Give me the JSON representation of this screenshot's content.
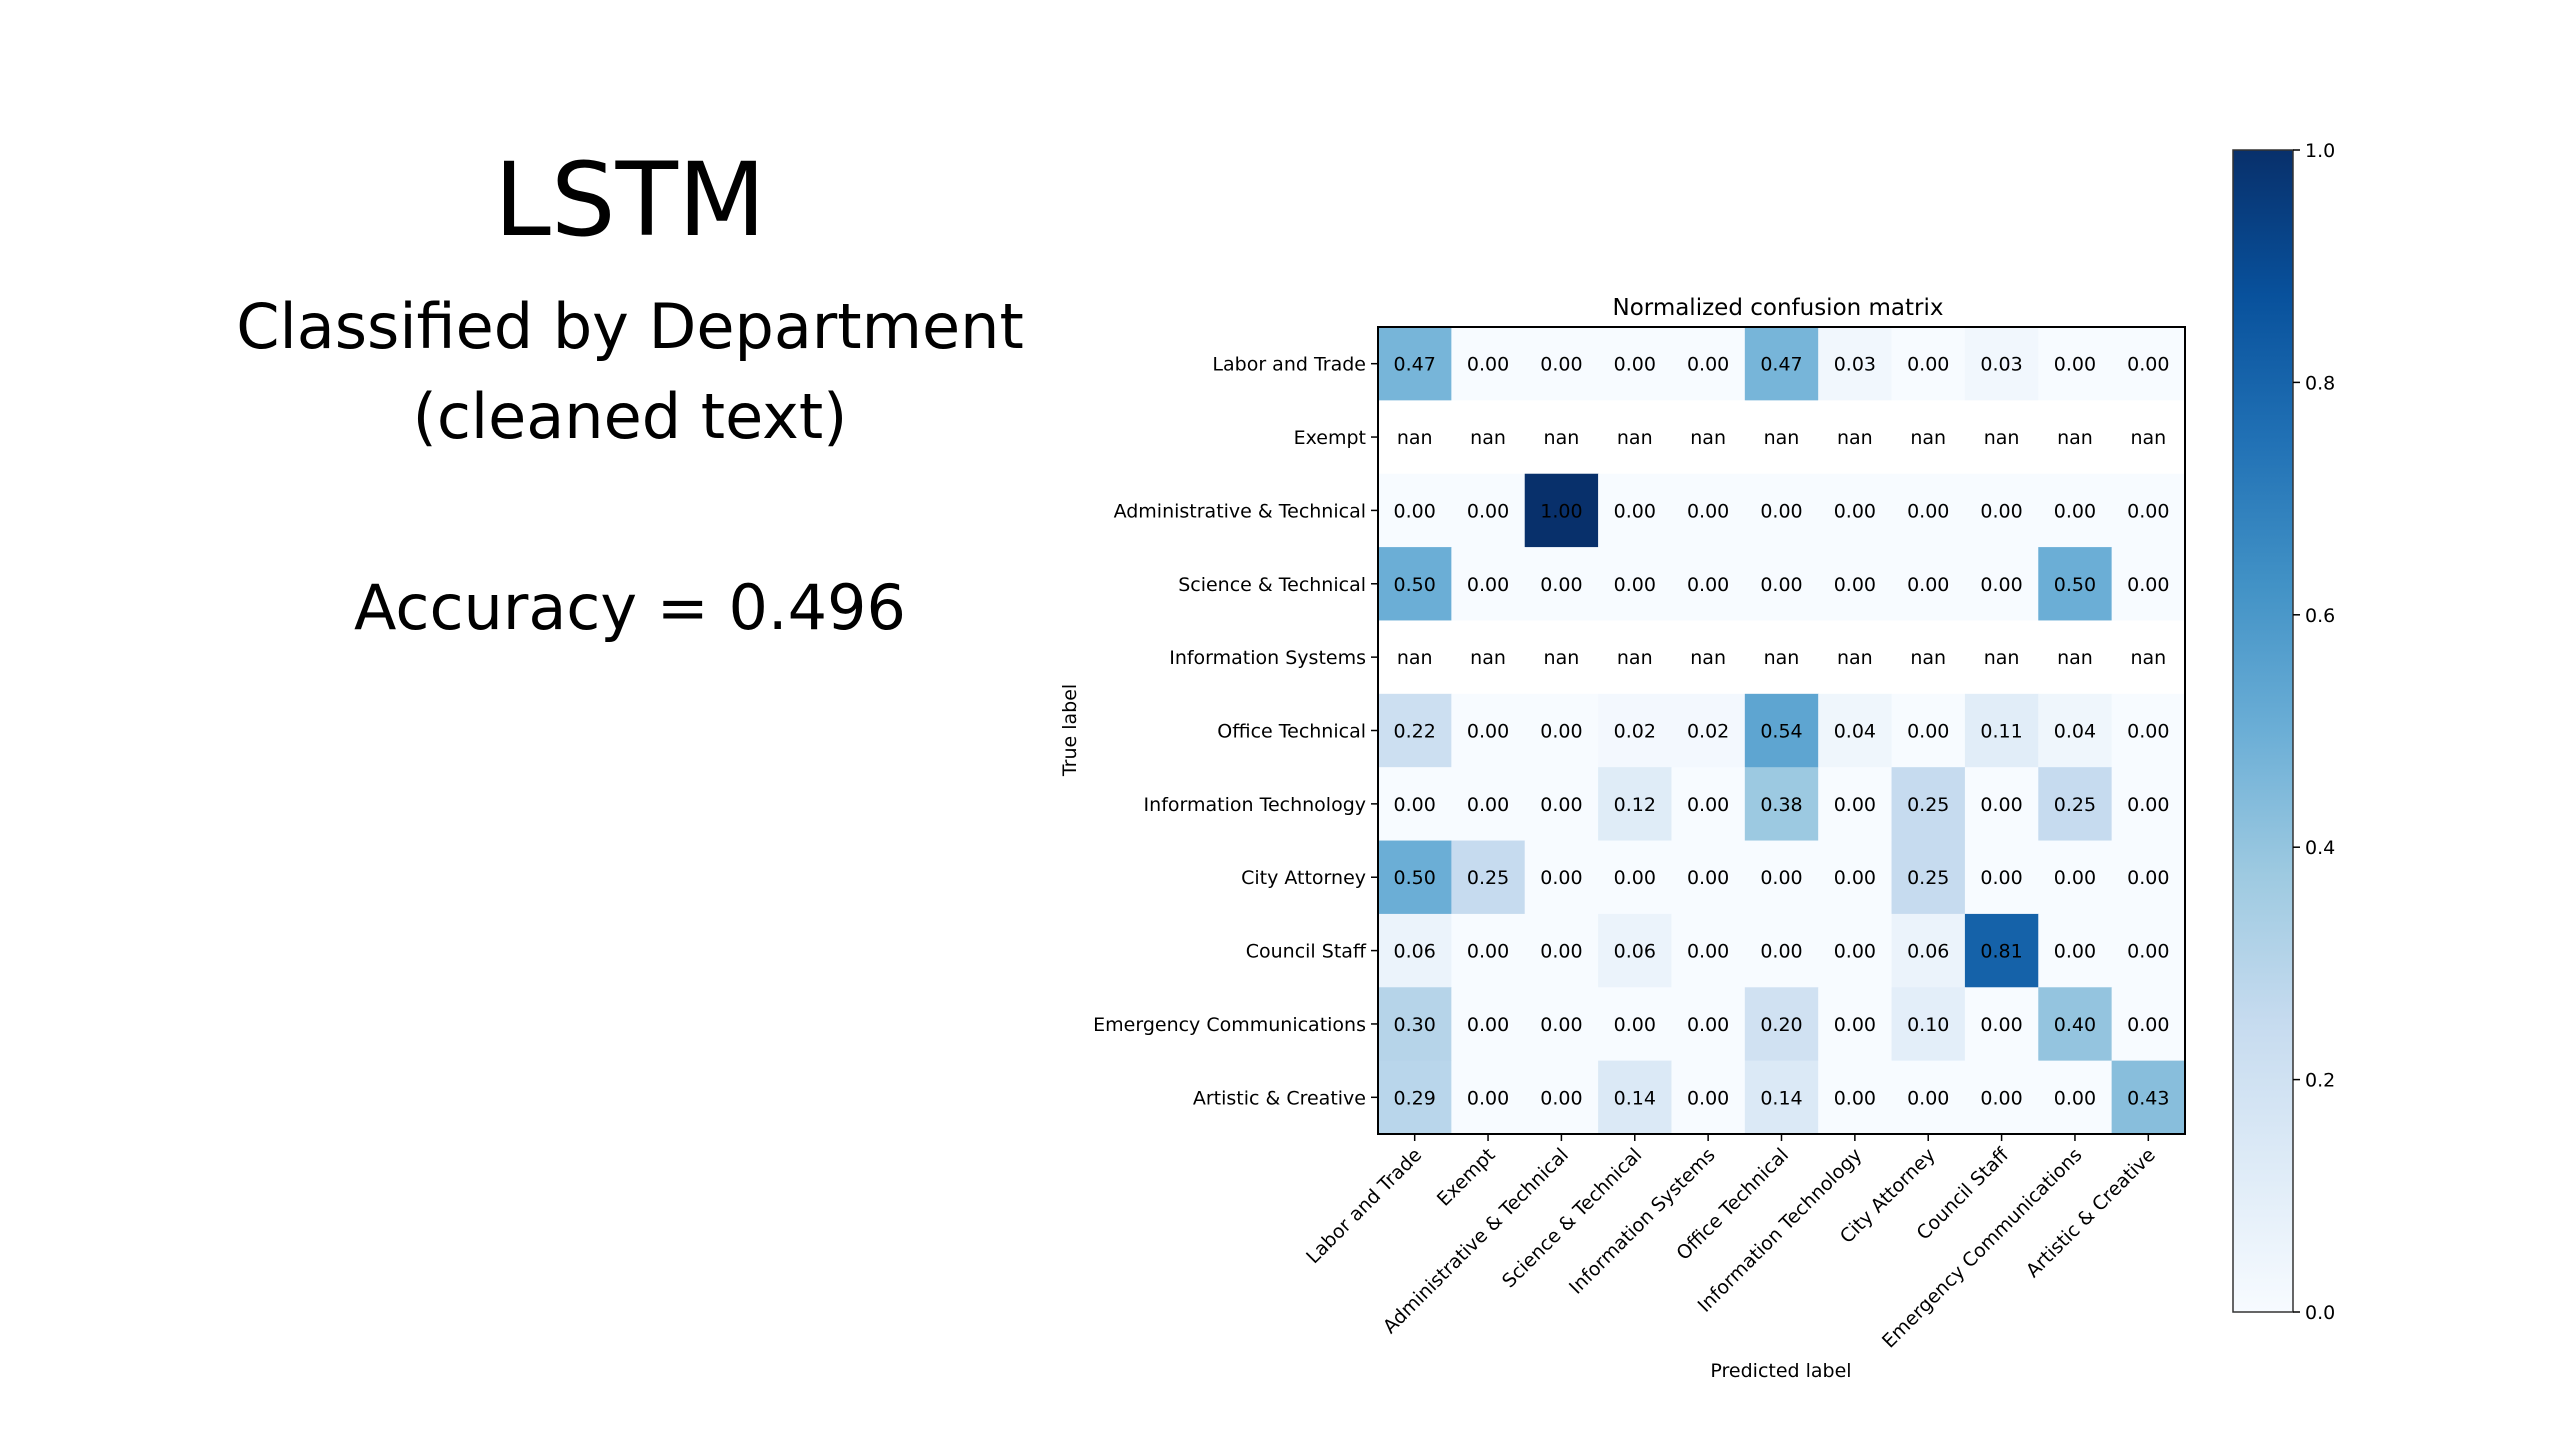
{
  "slide": {
    "title": "LSTM",
    "subtitle_line1": "Classified by Department",
    "subtitle_line2": "(cleaned text)",
    "accuracy": "Accuracy = 0.496"
  },
  "chart_data": {
    "type": "heatmap",
    "title": "Normalized confusion matrix",
    "xlabel": "Predicted label",
    "ylabel": "True label",
    "colormap": "Blues",
    "vmin": 0.0,
    "vmax": 1.0,
    "colorbar_ticks": [
      "0.0",
      "0.2",
      "0.4",
      "0.6",
      "0.8",
      "1.0"
    ],
    "labels": [
      "Labor and Trade",
      "Exempt",
      "Administrative & Technical",
      "Science & Technical",
      "Information Systems",
      "Office Technical",
      "Information Technology",
      "City Attorney",
      "Council Staff",
      "Emergency Communications",
      "Artistic & Creative"
    ],
    "matrix": [
      [
        "0.47",
        "0.00",
        "0.00",
        "0.00",
        "0.00",
        "0.47",
        "0.03",
        "0.00",
        "0.03",
        "0.00",
        "0.00"
      ],
      [
        "nan",
        "nan",
        "nan",
        "nan",
        "nan",
        "nan",
        "nan",
        "nan",
        "nan",
        "nan",
        "nan"
      ],
      [
        "0.00",
        "0.00",
        "1.00",
        "0.00",
        "0.00",
        "0.00",
        "0.00",
        "0.00",
        "0.00",
        "0.00",
        "0.00"
      ],
      [
        "0.50",
        "0.00",
        "0.00",
        "0.00",
        "0.00",
        "0.00",
        "0.00",
        "0.00",
        "0.00",
        "0.50",
        "0.00"
      ],
      [
        "nan",
        "nan",
        "nan",
        "nan",
        "nan",
        "nan",
        "nan",
        "nan",
        "nan",
        "nan",
        "nan"
      ],
      [
        "0.22",
        "0.00",
        "0.00",
        "0.02",
        "0.02",
        "0.54",
        "0.04",
        "0.00",
        "0.11",
        "0.04",
        "0.00"
      ],
      [
        "0.00",
        "0.00",
        "0.00",
        "0.12",
        "0.00",
        "0.38",
        "0.00",
        "0.25",
        "0.00",
        "0.25",
        "0.00"
      ],
      [
        "0.50",
        "0.25",
        "0.00",
        "0.00",
        "0.00",
        "0.00",
        "0.00",
        "0.25",
        "0.00",
        "0.00",
        "0.00"
      ],
      [
        "0.06",
        "0.00",
        "0.00",
        "0.06",
        "0.00",
        "0.00",
        "0.00",
        "0.06",
        "0.81",
        "0.00",
        "0.00"
      ],
      [
        "0.30",
        "0.00",
        "0.00",
        "0.00",
        "0.00",
        "0.20",
        "0.00",
        "0.10",
        "0.00",
        "0.40",
        "0.00"
      ],
      [
        "0.29",
        "0.00",
        "0.00",
        "0.14",
        "0.00",
        "0.14",
        "0.00",
        "0.00",
        "0.00",
        "0.00",
        "0.43"
      ]
    ]
  }
}
